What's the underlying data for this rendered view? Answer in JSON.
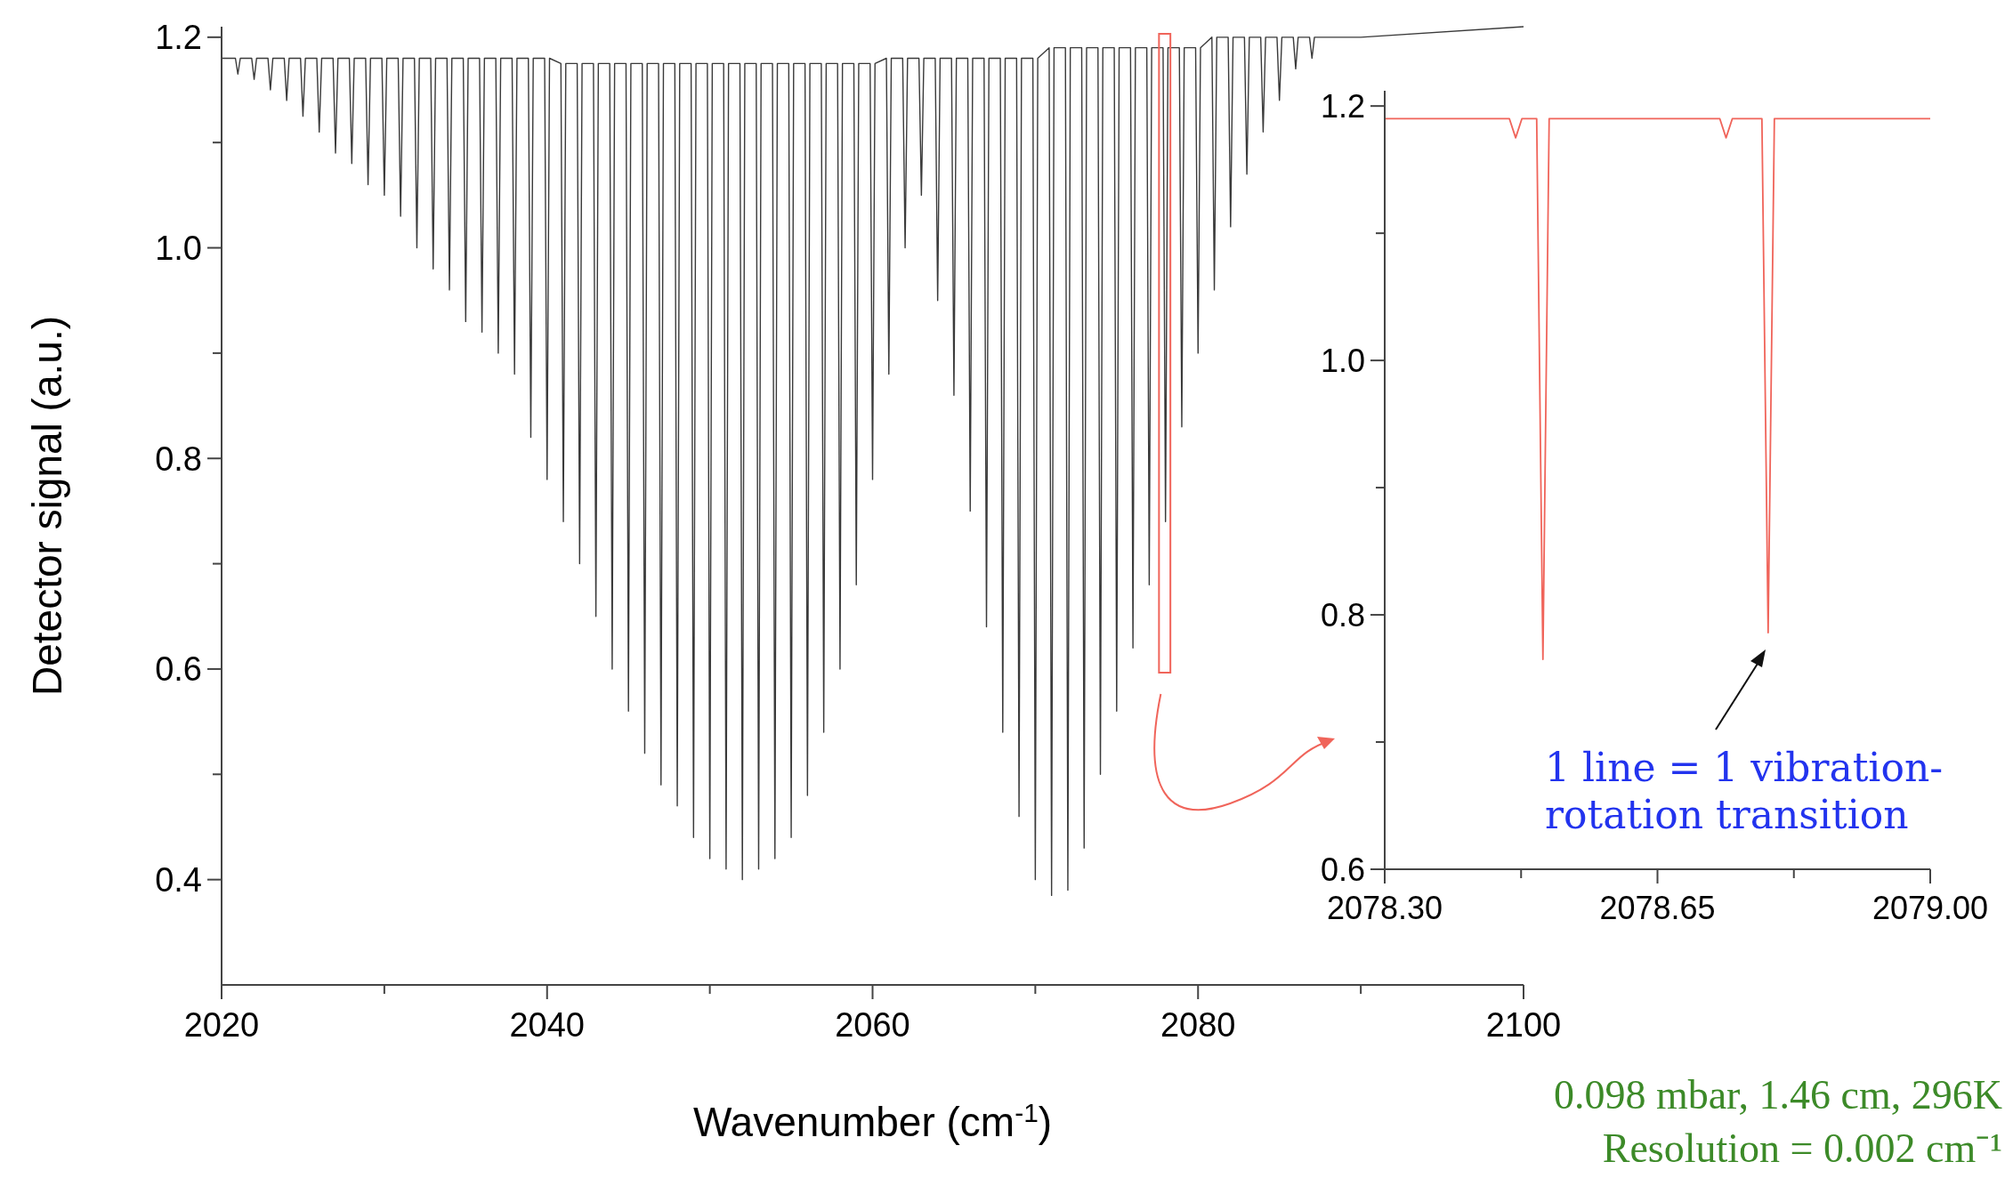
{
  "chart_data": [
    {
      "type": "line",
      "xlabel": "Wavenumber (cm$^{-1}$)",
      "ylabel": "Detector signal (a.u.)",
      "xlim": [
        2020,
        2100
      ],
      "ylim": [
        0.3,
        1.21
      ],
      "xticks": [
        2020,
        {
          "value": 2030,
          "label": null
        },
        2040,
        {
          "value": 2050,
          "label": null
        },
        2060,
        {
          "value": 2070,
          "label": null
        },
        2080,
        {
          "value": 2090,
          "label": null
        },
        2100
      ],
      "yticks": [
        {
          "value": 0.4,
          "label": "0.4"
        },
        {
          "value": 0.5,
          "label": null
        },
        {
          "value": 0.6,
          "label": "0.6"
        },
        {
          "value": 0.7,
          "label": null
        },
        {
          "value": 0.8,
          "label": "0.8"
        },
        {
          "value": 0.9,
          "label": null
        },
        {
          "value": 1,
          "label": "1.0"
        },
        {
          "value": 1.1,
          "label": null
        },
        {
          "value": 1.2,
          "label": "1.2"
        }
      ],
      "grid": false,
      "line_style": "solid",
      "series": [
        {
          "color": "#3a3a3a",
          "x": [
            2020,
            2020.85,
            2021,
            2021.15,
            2021.85,
            2022,
            2022.15,
            2022.85,
            2023,
            2023.15,
            2023.85,
            2024,
            2024.15,
            2024.85,
            2025,
            2025.15,
            2025.85,
            2026,
            2026.15,
            2026.85,
            2027,
            2027.15,
            2027.85,
            2028,
            2028.15,
            2028.85,
            2029,
            2029.15,
            2029.85,
            2030,
            2030.15,
            2030.85,
            2031,
            2031.15,
            2031.85,
            2032,
            2032.15,
            2032.85,
            2033,
            2033.15,
            2033.85,
            2034,
            2034.15,
            2034.85,
            2035,
            2035.15,
            2035.85,
            2036,
            2036.15,
            2036.85,
            2037,
            2037.15,
            2037.85,
            2038,
            2038.15,
            2038.85,
            2039,
            2039.15,
            2039.85,
            2040,
            2040.15,
            2040.85,
            2041,
            2041.15,
            2041.85,
            2042,
            2042.15,
            2042.85,
            2043,
            2043.15,
            2043.85,
            2044,
            2044.15,
            2044.85,
            2045,
            2045.15,
            2045.85,
            2046,
            2046.15,
            2046.85,
            2047,
            2047.15,
            2047.85,
            2048,
            2048.15,
            2048.85,
            2049,
            2049.15,
            2049.85,
            2050,
            2050.15,
            2050.85,
            2051,
            2051.15,
            2051.85,
            2052,
            2052.15,
            2052.85,
            2053,
            2053.15,
            2053.85,
            2054,
            2054.15,
            2054.85,
            2055,
            2055.15,
            2055.85,
            2056,
            2056.15,
            2056.85,
            2057,
            2057.15,
            2057.85,
            2058,
            2058.15,
            2058.85,
            2059,
            2059.15,
            2059.85,
            2060,
            2060.15,
            2060.85,
            2061,
            2061.15,
            2061.85,
            2062,
            2062.15,
            2062.85,
            2063,
            2063.15,
            2063.85,
            2064,
            2064.15,
            2064.85,
            2065,
            2065.15,
            2065.85,
            2066,
            2066.15,
            2066.85,
            2067,
            2067.15,
            2067.85,
            2068,
            2068.15,
            2068.85,
            2069,
            2069.15,
            2069.85,
            2070,
            2070.15,
            2070.85,
            2071,
            2071.15,
            2071.85,
            2072,
            2072.15,
            2072.85,
            2073,
            2073.15,
            2073.85,
            2074,
            2074.15,
            2074.85,
            2075,
            2075.15,
            2075.85,
            2076,
            2076.15,
            2076.85,
            2077,
            2077.15,
            2077.85,
            2078,
            2078.15,
            2078.85,
            2079,
            2079.15,
            2079.85,
            2080,
            2080.15,
            2080.85,
            2081,
            2081.15,
            2081.85,
            2082,
            2082.15,
            2082.85,
            2083,
            2083.15,
            2083.85,
            2084,
            2084.15,
            2084.85,
            2085,
            2085.15,
            2085.85,
            2086,
            2086.15,
            2086.85,
            2087,
            2087.15,
            2090,
            2100
          ],
          "values": [
            1.18,
            1.18,
            1.165,
            1.18,
            1.18,
            1.16,
            1.18,
            1.18,
            1.15,
            1.18,
            1.18,
            1.14,
            1.18,
            1.18,
            1.125,
            1.18,
            1.18,
            1.11,
            1.18,
            1.18,
            1.09,
            1.18,
            1.18,
            1.08,
            1.18,
            1.18,
            1.06,
            1.18,
            1.18,
            1.05,
            1.18,
            1.18,
            1.03,
            1.18,
            1.18,
            1.0,
            1.18,
            1.18,
            0.98,
            1.18,
            1.18,
            0.96,
            1.18,
            1.18,
            0.93,
            1.18,
            1.18,
            0.92,
            1.18,
            1.18,
            0.9,
            1.18,
            1.18,
            0.88,
            1.18,
            1.18,
            0.82,
            1.18,
            1.18,
            0.78,
            1.18,
            1.175,
            0.74,
            1.175,
            1.175,
            0.7,
            1.175,
            1.175,
            0.65,
            1.175,
            1.175,
            0.6,
            1.175,
            1.175,
            0.56,
            1.175,
            1.175,
            0.52,
            1.175,
            1.175,
            0.49,
            1.175,
            1.175,
            0.47,
            1.175,
            1.175,
            0.44,
            1.175,
            1.175,
            0.42,
            1.175,
            1.175,
            0.41,
            1.175,
            1.175,
            0.4,
            1.175,
            1.175,
            0.41,
            1.175,
            1.175,
            0.42,
            1.175,
            1.175,
            0.44,
            1.175,
            1.175,
            0.48,
            1.175,
            1.175,
            0.54,
            1.175,
            1.175,
            0.6,
            1.175,
            1.175,
            0.68,
            1.175,
            1.175,
            0.78,
            1.175,
            1.18,
            0.88,
            1.18,
            1.18,
            1.0,
            1.18,
            1.18,
            1.05,
            1.18,
            1.18,
            0.95,
            1.18,
            1.18,
            0.86,
            1.18,
            1.18,
            0.75,
            1.18,
            1.18,
            0.64,
            1.18,
            1.18,
            0.54,
            1.18,
            1.18,
            0.46,
            1.18,
            1.18,
            0.4,
            1.18,
            1.19,
            0.385,
            1.19,
            1.19,
            0.39,
            1.19,
            1.19,
            0.43,
            1.19,
            1.19,
            0.5,
            1.19,
            1.19,
            0.56,
            1.19,
            1.19,
            0.62,
            1.19,
            1.19,
            0.68,
            1.19,
            1.19,
            0.74,
            1.19,
            1.19,
            0.83,
            1.19,
            1.19,
            0.9,
            1.19,
            1.2,
            0.96,
            1.2,
            1.2,
            1.02,
            1.2,
            1.2,
            1.07,
            1.2,
            1.2,
            1.11,
            1.2,
            1.2,
            1.14,
            1.2,
            1.2,
            1.17,
            1.2,
            1.2,
            1.18,
            1.2,
            1.2,
            1.21
          ]
        }
      ],
      "annotations": [
        "0.098 mbar, 1.46 cm, 296K",
        "Resolution = 0.002 cm⁻¹"
      ]
    },
    {
      "type": "line",
      "xlim": [
        2078.3,
        2079.0
      ],
      "ylim": [
        0.6,
        1.212
      ],
      "xticks": [
        {
          "value": 2078.3,
          "label": "2078.30"
        },
        {
          "value": 2078.475,
          "label": null
        },
        {
          "value": 2078.65,
          "label": "2078.65"
        },
        {
          "value": 2078.825,
          "label": null
        },
        {
          "value": 2079,
          "label": "2079.00"
        }
      ],
      "yticks": [
        {
          "value": 0.6,
          "label": "0.6"
        },
        {
          "value": 0.7,
          "label": null
        },
        {
          "value": 0.8,
          "label": "0.8"
        },
        {
          "value": 0.9,
          "label": null
        },
        {
          "value": 1,
          "label": "1.0"
        },
        {
          "value": 1.1,
          "label": null
        },
        {
          "value": 1.2,
          "label": "1.2"
        }
      ],
      "grid": false,
      "line_style": "solid",
      "series": [
        {
          "color": "#f0645a",
          "x": [
            2078.3,
            2078.46,
            2078.468,
            2078.476,
            2078.495,
            2078.503,
            2078.511,
            2078.73,
            2078.738,
            2078.746,
            2078.784,
            2078.792,
            2078.8,
            2079.0
          ],
          "values": [
            1.19,
            1.19,
            1.175,
            1.19,
            1.19,
            0.765,
            1.19,
            1.19,
            1.175,
            1.19,
            1.19,
            0.786,
            1.19,
            1.19
          ]
        }
      ],
      "annotations": [
        "1 line = 1 vibration-rotation transition"
      ]
    }
  ]
}
